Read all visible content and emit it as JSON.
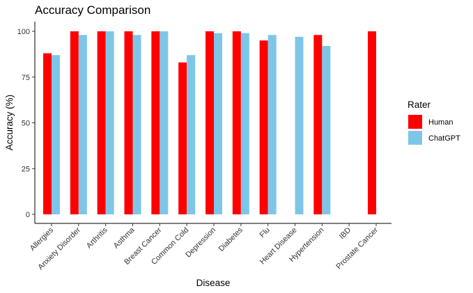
{
  "chart_data": {
    "type": "bar",
    "title": "Accuracy Comparison",
    "xlabel": "Disease",
    "ylabel": "Accuracy (%)",
    "ylim": [
      0,
      105
    ],
    "yticks": [
      "0",
      "25",
      "50",
      "75",
      "100"
    ],
    "categories": [
      "Allergies",
      "Anxiety Disorder",
      "Arthritis",
      "Asthma",
      "Breast Cancer",
      "Common Cold",
      "Depression",
      "Diabetes",
      "Flu",
      "Heart Disease",
      "Hypertension",
      "IBD",
      "Prostate Cancer"
    ],
    "series": [
      {
        "name": "Human",
        "color": "#ff0000",
        "values": [
          88,
          100,
          100,
          100,
          100,
          83,
          100,
          100,
          95,
          null,
          98,
          null,
          100
        ]
      },
      {
        "name": "ChatGPT",
        "color": "#7ec6e8",
        "values": [
          87,
          98,
          100,
          98,
          100,
          87,
          99,
          99,
          98,
          97,
          92,
          null,
          null
        ]
      }
    ],
    "legend": {
      "title": "Rater",
      "position": "right"
    },
    "grid": false
  }
}
